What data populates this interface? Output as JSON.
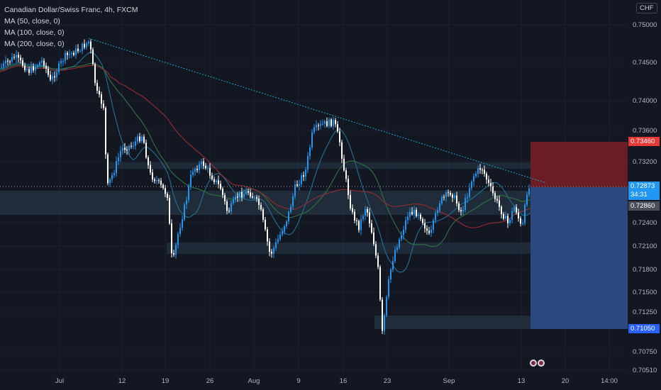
{
  "legend": {
    "symbol": "Canadian Dollar/Swiss Franc, 4h, FXCM",
    "ma50": "MA (50, close, 0)",
    "ma100": "MA (100, close, 0)",
    "ma200": "MA (200, close, 0)"
  },
  "currency": "CHF",
  "price_axis": {
    "ticks": [
      "0.75000",
      "0.74500",
      "0.74000",
      "0.73600",
      "0.73200",
      "0.72400",
      "0.72100",
      "0.71800",
      "0.71500",
      "0.71250",
      "0.70750",
      "0.70510"
    ],
    "stop_tag": "0.73460",
    "last_price": "0.72873",
    "countdown": "34:31",
    "entry_tag": "0.72860",
    "target_tag": "0.71050"
  },
  "time_axis": [
    "Jul",
    "12",
    "19",
    "26",
    "Aug",
    "9",
    "16",
    "23",
    "Sep",
    "13",
    "20",
    "14:00"
  ],
  "colors": {
    "background": "#131722",
    "up": "#2196f3",
    "down": "#ffffff",
    "ma50": "#1f6b8f",
    "ma100": "#2f6b45",
    "ma200": "#8c2b34",
    "stop_zone": "#7a1f24",
    "target_zone": "#2f4f8a",
    "trendline": "#1ea5c8"
  }
}
